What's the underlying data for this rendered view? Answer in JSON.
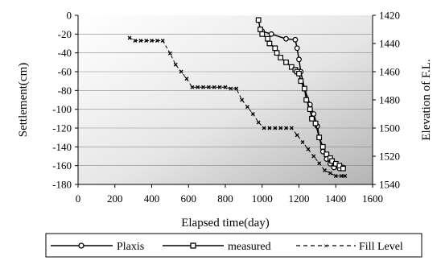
{
  "chart_data": {
    "type": "line",
    "title": "",
    "xlabel": "Elapsed time(day)",
    "ylabel": "Settlement(cm)",
    "y2label": "Elevation of F.L.",
    "xlim": [
      0,
      1600
    ],
    "ylim": [
      -180,
      0
    ],
    "y2lim": [
      1420,
      1540
    ],
    "y2_inverted": true,
    "x_ticks": [
      "0",
      "200",
      "400",
      "600",
      "800",
      "1000",
      "1200",
      "1400",
      "1600"
    ],
    "y_ticks": [
      "0",
      "-20",
      "-40",
      "-60",
      "-80",
      "-100",
      "-120",
      "-140",
      "-160",
      "-180"
    ],
    "y2_ticks": [
      "1420",
      "1440",
      "1460",
      "1480",
      "1500",
      "1520",
      "1540"
    ],
    "grid": "horizontal",
    "plot_background": "gradient white to gray",
    "legend_position": "bottom",
    "series": [
      {
        "name": "Plaxis",
        "axis": "left",
        "style": "solid",
        "marker": "circle",
        "color": "#000000",
        "x": [
          1000,
          1050,
          1130,
          1180,
          1190,
          1200,
          1210,
          1230,
          1260,
          1280,
          1300,
          1310,
          1330,
          1350,
          1370,
          1390,
          1420,
          1440
        ],
        "y": [
          -17,
          -20,
          -25,
          -26,
          -35,
          -47,
          -60,
          -78,
          -95,
          -105,
          -118,
          -130,
          -145,
          -153,
          -158,
          -162,
          -163,
          -162
        ]
      },
      {
        "name": "measured",
        "axis": "left",
        "style": "solid",
        "marker": "square",
        "color": "#000000",
        "x": [
          980,
          990,
          1000,
          1030,
          1040,
          1070,
          1080,
          1100,
          1130,
          1160,
          1180,
          1190,
          1200,
          1210,
          1230,
          1240,
          1260,
          1270,
          1290,
          1310,
          1330,
          1350,
          1370,
          1380,
          1400,
          1420,
          1440
        ],
        "y": [
          -5,
          -15,
          -20,
          -25,
          -30,
          -35,
          -40,
          -45,
          -50,
          -55,
          -58,
          -60,
          -62,
          -70,
          -78,
          -90,
          -100,
          -110,
          -115,
          -130,
          -140,
          -148,
          -152,
          -155,
          -158,
          -160,
          -163
        ]
      },
      {
        "name": "Fill Level",
        "axis": "right",
        "style": "dashed",
        "marker": "star",
        "color": "#000000",
        "x": [
          280,
          310,
          340,
          370,
          400,
          430,
          460,
          500,
          530,
          560,
          590,
          620,
          650,
          680,
          710,
          740,
          770,
          800,
          830,
          860,
          890,
          920,
          950,
          980,
          1010,
          1040,
          1070,
          1100,
          1130,
          1160,
          1190,
          1220,
          1250,
          1280,
          1310,
          1340,
          1370,
          1400,
          1430,
          1450
        ],
        "y": [
          1436,
          1438,
          1438,
          1438,
          1438,
          1438,
          1438,
          1447,
          1455,
          1460,
          1465,
          1471,
          1471,
          1471,
          1471,
          1471,
          1471,
          1471,
          1472,
          1472,
          1480,
          1485,
          1490,
          1496,
          1500,
          1500,
          1500,
          1500,
          1500,
          1500,
          1505,
          1510,
          1515,
          1520,
          1525,
          1530,
          1532,
          1534,
          1534,
          1534
        ]
      }
    ]
  }
}
